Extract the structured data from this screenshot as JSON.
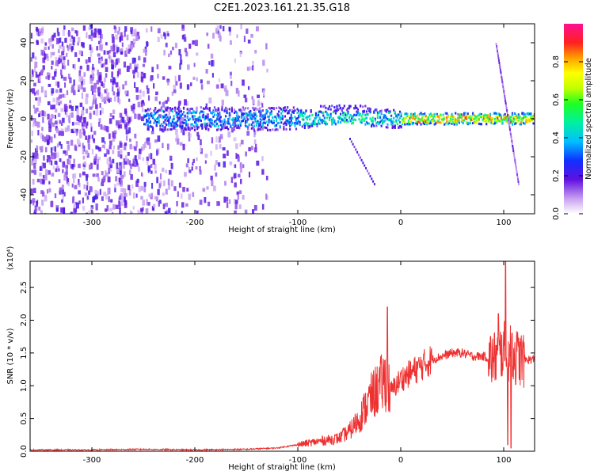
{
  "title": "C2E1.2023.161.21.35.G18",
  "chart_data": [
    {
      "type": "heatmap",
      "xlabel": "Height of straight line (km)",
      "ylabel": "Frequency (Hz)",
      "xlim": [
        -360,
        130
      ],
      "ylim": [
        -50,
        50
      ],
      "xticks": [
        -300,
        -200,
        -100,
        0,
        100
      ],
      "yticks": [
        -40,
        -20,
        0,
        20,
        40
      ],
      "colorbar": {
        "label": "Normalized spectral amplitude",
        "range": [
          0,
          1
        ],
        "ticks": [
          "0.0",
          "0.2",
          "0.4",
          "0.6",
          "0.8"
        ],
        "tick_values": [
          0.0,
          0.2,
          0.4,
          0.6,
          0.8
        ]
      }
    },
    {
      "type": "line",
      "xlabel": "Height of straight line (km)",
      "ylabel": "SNR (10 * v/v)",
      "y_multiplier": "(x10⁴)",
      "xlim": [
        -360,
        130
      ],
      "ylim": [
        0,
        2.9
      ],
      "xticks": [
        -300,
        -200,
        -100,
        0,
        100
      ],
      "yticks": [
        "0.0",
        "0.5",
        "1.0",
        "1.5",
        "2.0",
        "2.5"
      ],
      "ytick_values": [
        0.0,
        0.5,
        1.0,
        1.5,
        2.0,
        2.5
      ],
      "series": [
        {
          "color": "#ee3030",
          "x": [
            -360,
            -300,
            -250,
            -200,
            -150,
            -120,
            -100,
            -80,
            -60,
            -50,
            -40,
            -30,
            -20,
            -15,
            -10,
            0,
            10,
            20,
            30,
            40,
            50,
            60,
            70,
            80,
            90,
            100,
            105,
            110,
            120,
            130
          ],
          "y": [
            0.02,
            0.02,
            0.03,
            0.02,
            0.03,
            0.05,
            0.1,
            0.15,
            0.2,
            0.3,
            0.5,
            0.8,
            1.0,
            1.1,
            0.9,
            1.1,
            1.2,
            1.3,
            1.4,
            1.45,
            1.5,
            1.5,
            1.45,
            1.45,
            1.4,
            1.55,
            1.5,
            1.45,
            1.4,
            1.4
          ]
        }
      ],
      "peaks": [
        {
          "x": -13,
          "y": 2.2
        },
        {
          "x": 102,
          "y": 2.9
        },
        {
          "x": 95,
          "y": 2.1
        },
        {
          "x": 108,
          "y": 1.8
        }
      ],
      "dips": [
        {
          "x": 104,
          "y": 0.1
        },
        {
          "x": 107,
          "y": 0.05
        }
      ]
    }
  ],
  "colors": {
    "line": "#ee3030",
    "axis": "#000000"
  }
}
